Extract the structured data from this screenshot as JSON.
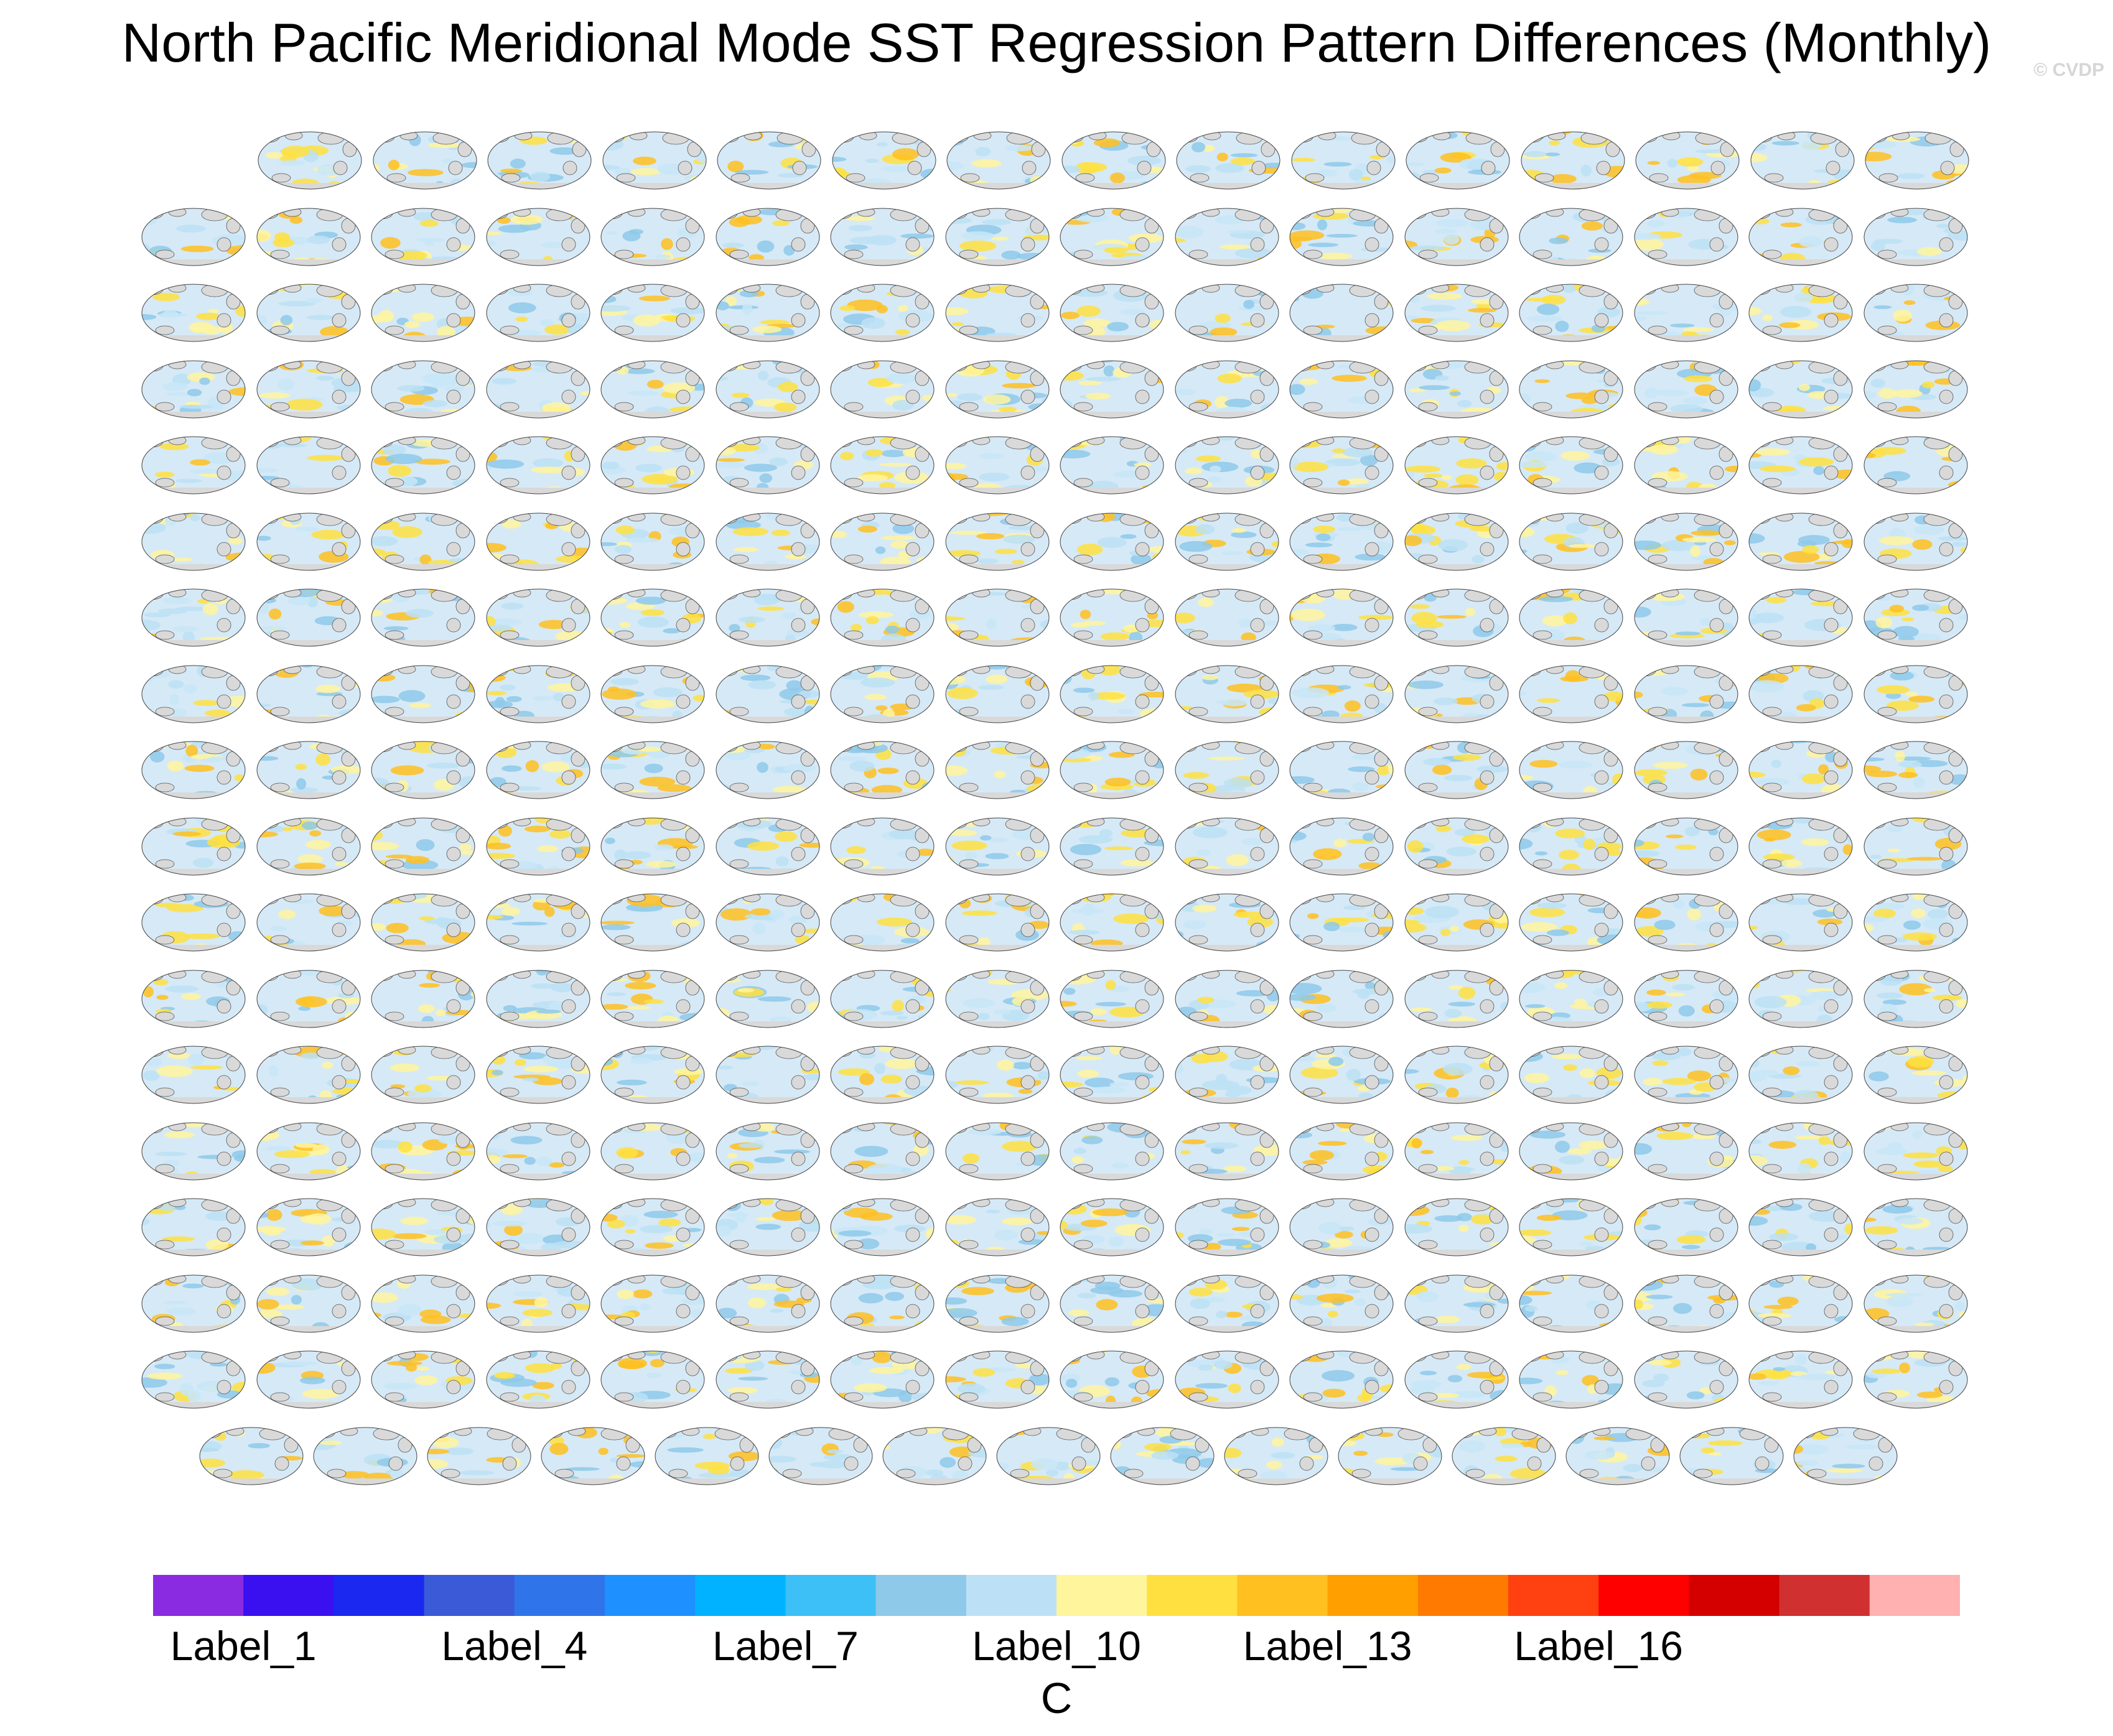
{
  "title": "North Pacific Meridional Mode SST Regression Pattern Differences (Monthly)",
  "watermark": "© CVDP",
  "chart_data": {
    "type": "heatmap",
    "description_panels": "grid of global SST regression difference maps",
    "grid": {
      "rows": 18,
      "row_counts": [
        15,
        16,
        16,
        16,
        16,
        16,
        16,
        16,
        16,
        16,
        16,
        16,
        16,
        16,
        16,
        16,
        16,
        15
      ]
    },
    "colorbar": {
      "colors": [
        "#8a2be2",
        "#3b10f0",
        "#1a28f0",
        "#3b5ad8",
        "#2f74e8",
        "#1e90ff",
        "#00b2ff",
        "#3cc0f5",
        "#8ec9ea",
        "#bce0f5",
        "#fff59d",
        "#ffe040",
        "#ffc020",
        "#ff9f00",
        "#ff7a00",
        "#ff4010",
        "#ff0000",
        "#d40000",
        "#d03030",
        "#ffb0b0"
      ],
      "tick_labels": [
        "Label_1",
        "Label_4",
        "Label_7",
        "Label_10",
        "Label_13",
        "Label_16"
      ],
      "tick_positions_index": [
        1,
        4,
        7,
        10,
        13,
        16
      ],
      "units": "C"
    }
  }
}
